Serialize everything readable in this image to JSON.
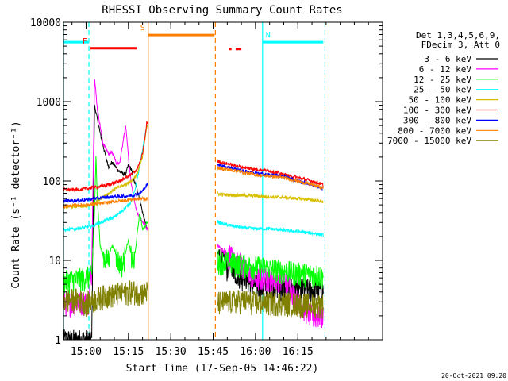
{
  "chart_data": {
    "type": "line",
    "title": "RHESSI Observing Summary Count Rates",
    "xlabel": "Start Time (17-Sep-05 14:46:22)",
    "ylabel": "Count Rate (s⁻¹ detector⁻¹)",
    "y_scale": "log",
    "ylim": [
      1,
      10000
    ],
    "xlim_minutes": [
      -8,
      105
    ],
    "x_ticks": [
      {
        "label": "15:00",
        "minute": 0
      },
      {
        "label": "15:15",
        "minute": 15
      },
      {
        "label": "15:30",
        "minute": 30
      },
      {
        "label": "15:45",
        "minute": 45
      },
      {
        "label": "16:00",
        "minute": 60
      },
      {
        "label": "16:15",
        "minute": 75
      }
    ],
    "y_ticks": [
      {
        "label": "1",
        "value": 1
      },
      {
        "label": "10",
        "value": 10
      },
      {
        "label": "100",
        "value": 100
      },
      {
        "label": "1000",
        "value": 1000
      },
      {
        "label": "10000",
        "value": 10000
      }
    ],
    "legend_header": [
      "Det 1,3,4,5,6,9,",
      "FDecim 3, Att 0"
    ],
    "legend_position": "top-right",
    "series": [
      {
        "name": "3 - 6 keV",
        "color": "#000000",
        "t": [
          -8,
          0,
          1,
          2,
          3,
          5,
          7,
          8,
          9,
          10,
          11,
          12,
          14,
          15,
          16,
          17,
          18,
          19,
          20,
          21,
          21.5,
          47,
          48,
          49,
          50,
          51,
          52,
          53,
          54,
          55,
          56,
          57,
          58,
          60,
          62,
          65,
          70,
          75,
          80,
          84
        ],
        "v": [
          1,
          1,
          1,
          1,
          900,
          400,
          200,
          150,
          170,
          160,
          140,
          130,
          120,
          160,
          140,
          100,
          80,
          60,
          40,
          30,
          25,
          12,
          11,
          9,
          8,
          10,
          9,
          7,
          7,
          6,
          7,
          6,
          5,
          5,
          4.5,
          5,
          4.5,
          4.5,
          4.3,
          4.2
        ]
      },
      {
        "name": "6 - 12 keV",
        "color": "#ff00ff",
        "t": [
          -8,
          -2,
          0,
          1,
          2,
          3,
          4,
          6,
          8,
          9,
          10,
          11,
          12,
          13,
          14,
          15,
          16,
          17,
          18,
          19,
          20,
          21,
          21.5,
          47,
          48,
          49,
          50,
          51,
          52,
          53,
          54,
          56,
          58,
          60,
          65,
          70,
          72,
          75,
          80,
          84
        ],
        "v": [
          3,
          3,
          3,
          3,
          8,
          2000,
          800,
          300,
          220,
          230,
          200,
          160,
          180,
          300,
          500,
          200,
          90,
          60,
          40,
          35,
          30,
          28,
          25,
          15,
          14,
          12,
          10,
          12,
          11,
          9,
          10,
          8,
          7,
          6,
          6,
          6,
          5,
          3,
          2,
          2
        ]
      },
      {
        "name": "12 - 25 keV",
        "color": "#00ff00",
        "t": [
          -8,
          -1,
          0,
          1,
          2,
          3,
          3.5,
          4,
          5,
          6,
          7,
          8,
          9,
          10,
          11,
          12,
          13,
          14,
          15,
          16,
          17,
          18,
          19,
          20,
          21,
          21.5,
          47,
          50,
          55,
          60,
          65,
          70,
          75,
          80,
          84
        ],
        "v": [
          5.5,
          6,
          6.2,
          6.3,
          6.5,
          40,
          200,
          60,
          15,
          12,
          10,
          11,
          15,
          14,
          11,
          9,
          9,
          13,
          18,
          11,
          9,
          20,
          40,
          25,
          27,
          30,
          10,
          9.5,
          9,
          8.5,
          8,
          7.5,
          7,
          6.8,
          6.5
        ]
      },
      {
        "name": "25 - 50 keV",
        "color": "#00ffff",
        "t": [
          -8,
          -4,
          0,
          2,
          3,
          5,
          8,
          10,
          12,
          14,
          16,
          17,
          18,
          19,
          20,
          21,
          21.5,
          47,
          50,
          55,
          60,
          65,
          70,
          75,
          80,
          84
        ],
        "v": [
          24,
          25,
          26,
          27,
          28,
          30,
          33,
          35,
          40,
          46,
          55,
          70,
          100,
          150,
          250,
          400,
          500,
          30,
          28,
          26,
          25,
          25,
          24,
          23,
          22,
          21
        ]
      },
      {
        "name": "50 - 100 keV",
        "color": "#d8c000",
        "t": [
          -8,
          0,
          3,
          5,
          8,
          10,
          12,
          14,
          16,
          18,
          20,
          21.5,
          47,
          50,
          55,
          60,
          65,
          70,
          75,
          80,
          84
        ],
        "v": [
          47,
          48,
          52,
          60,
          70,
          78,
          85,
          90,
          100,
          120,
          200,
          500,
          68,
          67,
          66,
          65,
          63,
          62,
          60,
          58,
          55
        ]
      },
      {
        "name": "100 - 300 keV",
        "color": "#ff0000",
        "t": [
          -8,
          -2,
          0,
          2,
          4,
          6,
          8,
          10,
          12,
          14,
          16,
          18,
          19,
          20,
          21,
          21.5,
          47,
          50,
          55,
          60,
          65,
          70,
          75,
          80,
          84
        ],
        "v": [
          78,
          78,
          80,
          82,
          84,
          87,
          90,
          95,
          100,
          110,
          120,
          140,
          170,
          220,
          380,
          550,
          175,
          165,
          150,
          140,
          135,
          120,
          110,
          100,
          90
        ]
      },
      {
        "name": "300 - 800 keV",
        "color": "#0000ff",
        "t": [
          -8,
          -2,
          0,
          3,
          6,
          9,
          12,
          15,
          18,
          19,
          20,
          21,
          21.5,
          47,
          50,
          55,
          60,
          65,
          70,
          75,
          80,
          84
        ],
        "v": [
          56,
          57,
          58,
          60,
          62,
          63,
          64,
          65,
          68,
          70,
          75,
          85,
          90,
          160,
          150,
          135,
          125,
          120,
          115,
          100,
          90,
          80
        ]
      },
      {
        "name": "800 - 7000 keV",
        "color": "#ff8000",
        "t": [
          -8,
          0,
          5,
          10,
          15,
          20,
          21.5,
          47,
          50,
          55,
          60,
          65,
          70,
          75,
          80,
          84
        ],
        "v": [
          48,
          50,
          52,
          55,
          58,
          60,
          59,
          145,
          140,
          130,
          120,
          115,
          110,
          100,
          90,
          82
        ]
      },
      {
        "name": "7000 - 15000 keV",
        "color": "#808000",
        "t": [
          -8,
          -3,
          0,
          2,
          4,
          6,
          8,
          10,
          12,
          14,
          16,
          18,
          20,
          21.5,
          47,
          50,
          55,
          60,
          65,
          70,
          75,
          80,
          84
        ],
        "v": [
          3.2,
          3.3,
          3,
          3.1,
          3.4,
          3.6,
          3.8,
          3.7,
          4,
          4,
          4.2,
          4.1,
          4,
          4.1,
          3,
          3.1,
          3.2,
          3,
          3,
          3,
          2.9,
          2.8,
          2.8
        ]
      }
    ],
    "flag_bars": [
      {
        "label": "N",
        "color": "#00ffff",
        "segments": [
          [
            -8,
            1
          ],
          [
            62.5,
            84
          ]
        ],
        "value": 5600
      },
      {
        "label": "F",
        "color": "#ff0000",
        "segments": [
          [
            1.5,
            18
          ]
        ],
        "value": 4700
      },
      {
        "label": "S",
        "color": "#ff8000",
        "segments": [
          [
            22,
            45.5
          ]
        ],
        "value": 6900
      },
      {
        "label": "",
        "color": "#ff0000",
        "segments": [
          [
            50.5,
            51.5
          ],
          [
            53,
            55
          ]
        ],
        "value": 4600
      }
    ],
    "vertical_markers": [
      {
        "minute": -8,
        "color": "#00ffff",
        "style": "solid"
      },
      {
        "minute": 1,
        "color": "#00ffff",
        "style": "dashed"
      },
      {
        "minute": 22,
        "color": "#ff8000",
        "style": "solid"
      },
      {
        "minute": 45.8,
        "color": "#ff8000",
        "style": "dashed"
      },
      {
        "minute": 62.5,
        "color": "#00ffff",
        "style": "solid"
      },
      {
        "minute": 84.6,
        "color": "#00ffff",
        "style": "dashed"
      }
    ],
    "data_gap_minutes": [
      22,
      46.5
    ],
    "footer_date": "20-Oct-2021 09:20"
  }
}
